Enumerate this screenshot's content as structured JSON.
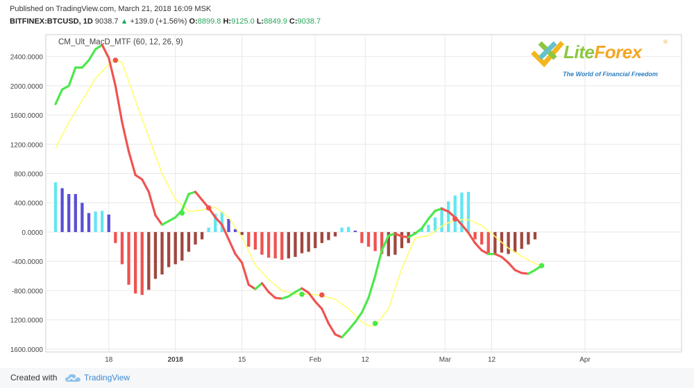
{
  "header": {
    "published": "Published on TradingView.com, March 21, 2018 16:09 MSK",
    "symbol": "BITFINEX:BTCUSD, 1D",
    "price": "9038.7",
    "change": "+139.0 (+1.56%)",
    "o_label": "O:",
    "o_value": "8899.8",
    "h_label": "H:",
    "h_value": "9125.0",
    "l_label": "L:",
    "l_value": "8849.9",
    "c_label": "C:",
    "c_value": "9038.7"
  },
  "logo": {
    "lite": "Lite",
    "forex": "Forex",
    "registered": "®",
    "tagline": "The World of Financial Freedom"
  },
  "footer": {
    "created_with": "Created with",
    "brand": "TradingView"
  },
  "colors": {
    "macd_up": "#4be84b",
    "macd_down": "#ef5350",
    "signal": "#ffff6e",
    "hist_pos_strong": "#62e6f0",
    "hist_pos_weak": "#5a4fd6",
    "hist_neg_strong": "#ef5350",
    "hist_neg_weak": "#a0473f",
    "grid": "#e8e8e8"
  },
  "chart_data": {
    "type": "line",
    "title": "CM_Ult_MacD_MTF (60, 12, 26, 9)",
    "ylim": [
      -1640,
      2700
    ],
    "xlim": [
      0,
      94
    ],
    "grid": true,
    "y_ticks": [
      2400,
      2000,
      1600,
      1200,
      800,
      400,
      0,
      -400,
      -800,
      -1200,
      -1600
    ],
    "y_tick_labels": [
      "2400.0000",
      "2000.0000",
      "1600.0000",
      "1200.0000",
      "800.0000",
      "400.0000",
      "0.0000",
      "-400.0000",
      "-800.0000",
      "-1200.0000",
      "-1600.0000"
    ],
    "x_ticks": [
      {
        "x": 8,
        "label": "18",
        "bold": false
      },
      {
        "x": 18,
        "label": "2018",
        "bold": true
      },
      {
        "x": 28,
        "label": "15",
        "bold": false
      },
      {
        "x": 39,
        "label": "Feb",
        "bold": false
      },
      {
        "x": 46.5,
        "label": "12",
        "bold": false
      },
      {
        "x": 58.5,
        "label": "Mar",
        "bold": false
      },
      {
        "x": 65.5,
        "label": "12",
        "bold": false
      },
      {
        "x": 79.5,
        "label": "Apr",
        "bold": false
      }
    ],
    "series": [
      {
        "key": "macd",
        "x": [
          0,
          1,
          2,
          3,
          4,
          5,
          6,
          7,
          8,
          9,
          10,
          11,
          12,
          13,
          14,
          15,
          16,
          17,
          18,
          19,
          20,
          21,
          22,
          23,
          24,
          25,
          26,
          27,
          28,
          29,
          30,
          31,
          32,
          33,
          34,
          35,
          36,
          37,
          38,
          39,
          40,
          41,
          42,
          43,
          44,
          45,
          46,
          47,
          48,
          49,
          50,
          51,
          52,
          53,
          54,
          55,
          56,
          57,
          58,
          59,
          60,
          61,
          62,
          63,
          64,
          65,
          66,
          67,
          68,
          69,
          70,
          71,
          72,
          73
        ],
        "values": [
          1750,
          1950,
          2000,
          2250,
          2250,
          2350,
          2500,
          2560,
          2380,
          2000,
          1500,
          1100,
          780,
          720,
          550,
          230,
          100,
          150,
          200,
          300,
          520,
          550,
          440,
          330,
          200,
          100,
          -100,
          -300,
          -420,
          -720,
          -780,
          -700,
          -820,
          -900,
          -910,
          -880,
          -820,
          -770,
          -830,
          -950,
          -1050,
          -1250,
          -1400,
          -1440,
          -1340,
          -1230,
          -1100,
          -900,
          -600,
          -250,
          -50,
          -20,
          -60,
          -70,
          -20,
          50,
          180,
          290,
          320,
          280,
          200,
          100,
          -10,
          -150,
          -250,
          -300,
          -300,
          -340,
          -420,
          -520,
          -560,
          -570,
          -520,
          -460
        ],
        "change_points": [
          {
            "x": 9,
            "value": 2350,
            "direction": "down"
          },
          {
            "x": 19,
            "value": 260,
            "direction": "up"
          },
          {
            "x": 23,
            "value": 330,
            "direction": "down"
          },
          {
            "x": 37,
            "value": -850,
            "direction": "up"
          },
          {
            "x": 40,
            "value": -860,
            "direction": "down"
          },
          {
            "x": 48,
            "value": -1250,
            "direction": "up"
          },
          {
            "x": 60,
            "value": 180,
            "direction": "down"
          },
          {
            "x": 73,
            "value": -460,
            "direction": "up"
          }
        ]
      },
      {
        "key": "signal",
        "x": [
          0,
          2,
          4,
          6,
          8,
          9,
          10,
          12,
          14,
          16,
          18,
          20,
          22,
          24,
          26,
          28,
          30,
          32,
          34,
          36,
          38,
          40,
          42,
          44,
          46,
          47,
          48,
          50,
          52,
          54,
          56,
          58,
          60,
          62,
          64,
          66,
          68,
          70,
          72,
          73
        ],
        "values": [
          1150,
          1500,
          1800,
          2100,
          2300,
          2360,
          2320,
          1800,
          1300,
          800,
          450,
          280,
          300,
          340,
          200,
          -70,
          -450,
          -650,
          -800,
          -850,
          -850,
          -870,
          -920,
          -1050,
          -1230,
          -1280,
          -1280,
          -1050,
          -500,
          -80,
          -50,
          80,
          170,
          170,
          90,
          -60,
          -220,
          -330,
          -430,
          -460
        ]
      },
      {
        "key": "histogram",
        "x": [
          0,
          1,
          2,
          3,
          4,
          5,
          6,
          7,
          8,
          9,
          10,
          11,
          12,
          13,
          14,
          15,
          16,
          17,
          18,
          19,
          20,
          21,
          22,
          23,
          24,
          25,
          26,
          27,
          28,
          29,
          30,
          31,
          32,
          33,
          34,
          35,
          36,
          37,
          38,
          39,
          40,
          41,
          42,
          43,
          44,
          45,
          46,
          47,
          48,
          49,
          50,
          51,
          52,
          53,
          54,
          55,
          56,
          57,
          58,
          59,
          60,
          61,
          62,
          63,
          64,
          65,
          66,
          67,
          68,
          69,
          70,
          71,
          72
        ],
        "values": [
          680,
          600,
          520,
          520,
          400,
          260,
          280,
          290,
          240,
          -150,
          -440,
          -720,
          -840,
          -860,
          -790,
          -640,
          -580,
          -480,
          -440,
          -390,
          -270,
          -170,
          -100,
          60,
          250,
          280,
          180,
          40,
          -40,
          -200,
          -240,
          -310,
          -350,
          -360,
          -380,
          -360,
          -340,
          -290,
          -270,
          -220,
          -150,
          -110,
          -60,
          60,
          70,
          20,
          -150,
          -200,
          -260,
          -300,
          -330,
          -310,
          -220,
          -150,
          -30,
          50,
          100,
          200,
          340,
          420,
          500,
          540,
          550,
          500,
          350,
          260,
          100,
          20,
          40,
          60,
          120,
          180,
          200
        ],
        "colors": [
          "hist_pos_strong",
          "hist_pos_weak",
          "hist_pos_weak",
          "hist_pos_weak",
          "hist_pos_weak",
          "hist_pos_weak",
          "hist_pos_strong",
          "hist_pos_strong",
          "hist_pos_weak",
          "hist_neg_strong",
          "hist_neg_strong",
          "hist_neg_strong",
          "hist_neg_strong",
          "hist_neg_strong",
          "hist_neg_weak",
          "hist_neg_weak",
          "hist_neg_weak",
          "hist_neg_weak",
          "hist_neg_weak",
          "hist_neg_weak",
          "hist_neg_weak",
          "hist_neg_weak",
          "hist_neg_weak",
          "hist_pos_strong",
          "hist_pos_strong",
          "hist_pos_strong",
          "hist_pos_weak",
          "hist_pos_weak",
          "hist_neg_weak",
          "hist_neg_strong",
          "hist_neg_strong",
          "hist_neg_strong",
          "hist_neg_strong",
          "hist_neg_strong",
          "hist_neg_strong",
          "hist_neg_weak",
          "hist_neg_weak",
          "hist_neg_weak",
          "hist_neg_weak",
          "hist_neg_weak",
          "hist_neg_weak",
          "hist_neg_weak",
          "hist_neg_weak",
          "hist_pos_strong",
          "hist_pos_strong",
          "hist_pos_weak",
          "hist_neg_strong",
          "hist_neg_strong",
          "hist_neg_strong",
          "hist_neg_strong",
          "hist_neg_weak",
          "hist_neg_weak",
          "hist_neg_weak",
          "hist_neg_weak",
          "hist_neg_weak",
          "hist_pos_strong",
          "hist_pos_strong",
          "hist_pos_strong",
          "hist_pos_strong",
          "hist_pos_strong",
          "hist_pos_strong",
          "hist_pos_strong",
          "hist_pos_strong",
          "hist_pos_weak",
          "hist_pos_weak",
          "hist_pos_weak",
          "hist_pos_weak",
          "hist_pos_weak",
          "hist_pos_strong",
          "hist_pos_strong",
          "hist_pos_strong",
          "hist_pos_strong",
          "hist_pos_strong"
        ]
      }
    ],
    "histogram_tail": {
      "x": [
        63,
        64,
        65,
        66,
        67,
        68,
        69,
        70,
        71,
        72
      ],
      "values": [
        -100,
        -170,
        -290,
        -290,
        -280,
        -300,
        -280,
        -230,
        -170,
        -100
      ],
      "colors": [
        "hist_neg_strong",
        "hist_neg_strong",
        "hist_neg_strong",
        "hist_neg_weak",
        "hist_neg_weak",
        "hist_neg_weak",
        "hist_neg_weak",
        "hist_neg_weak",
        "hist_neg_weak",
        "hist_neg_weak"
      ]
    }
  }
}
